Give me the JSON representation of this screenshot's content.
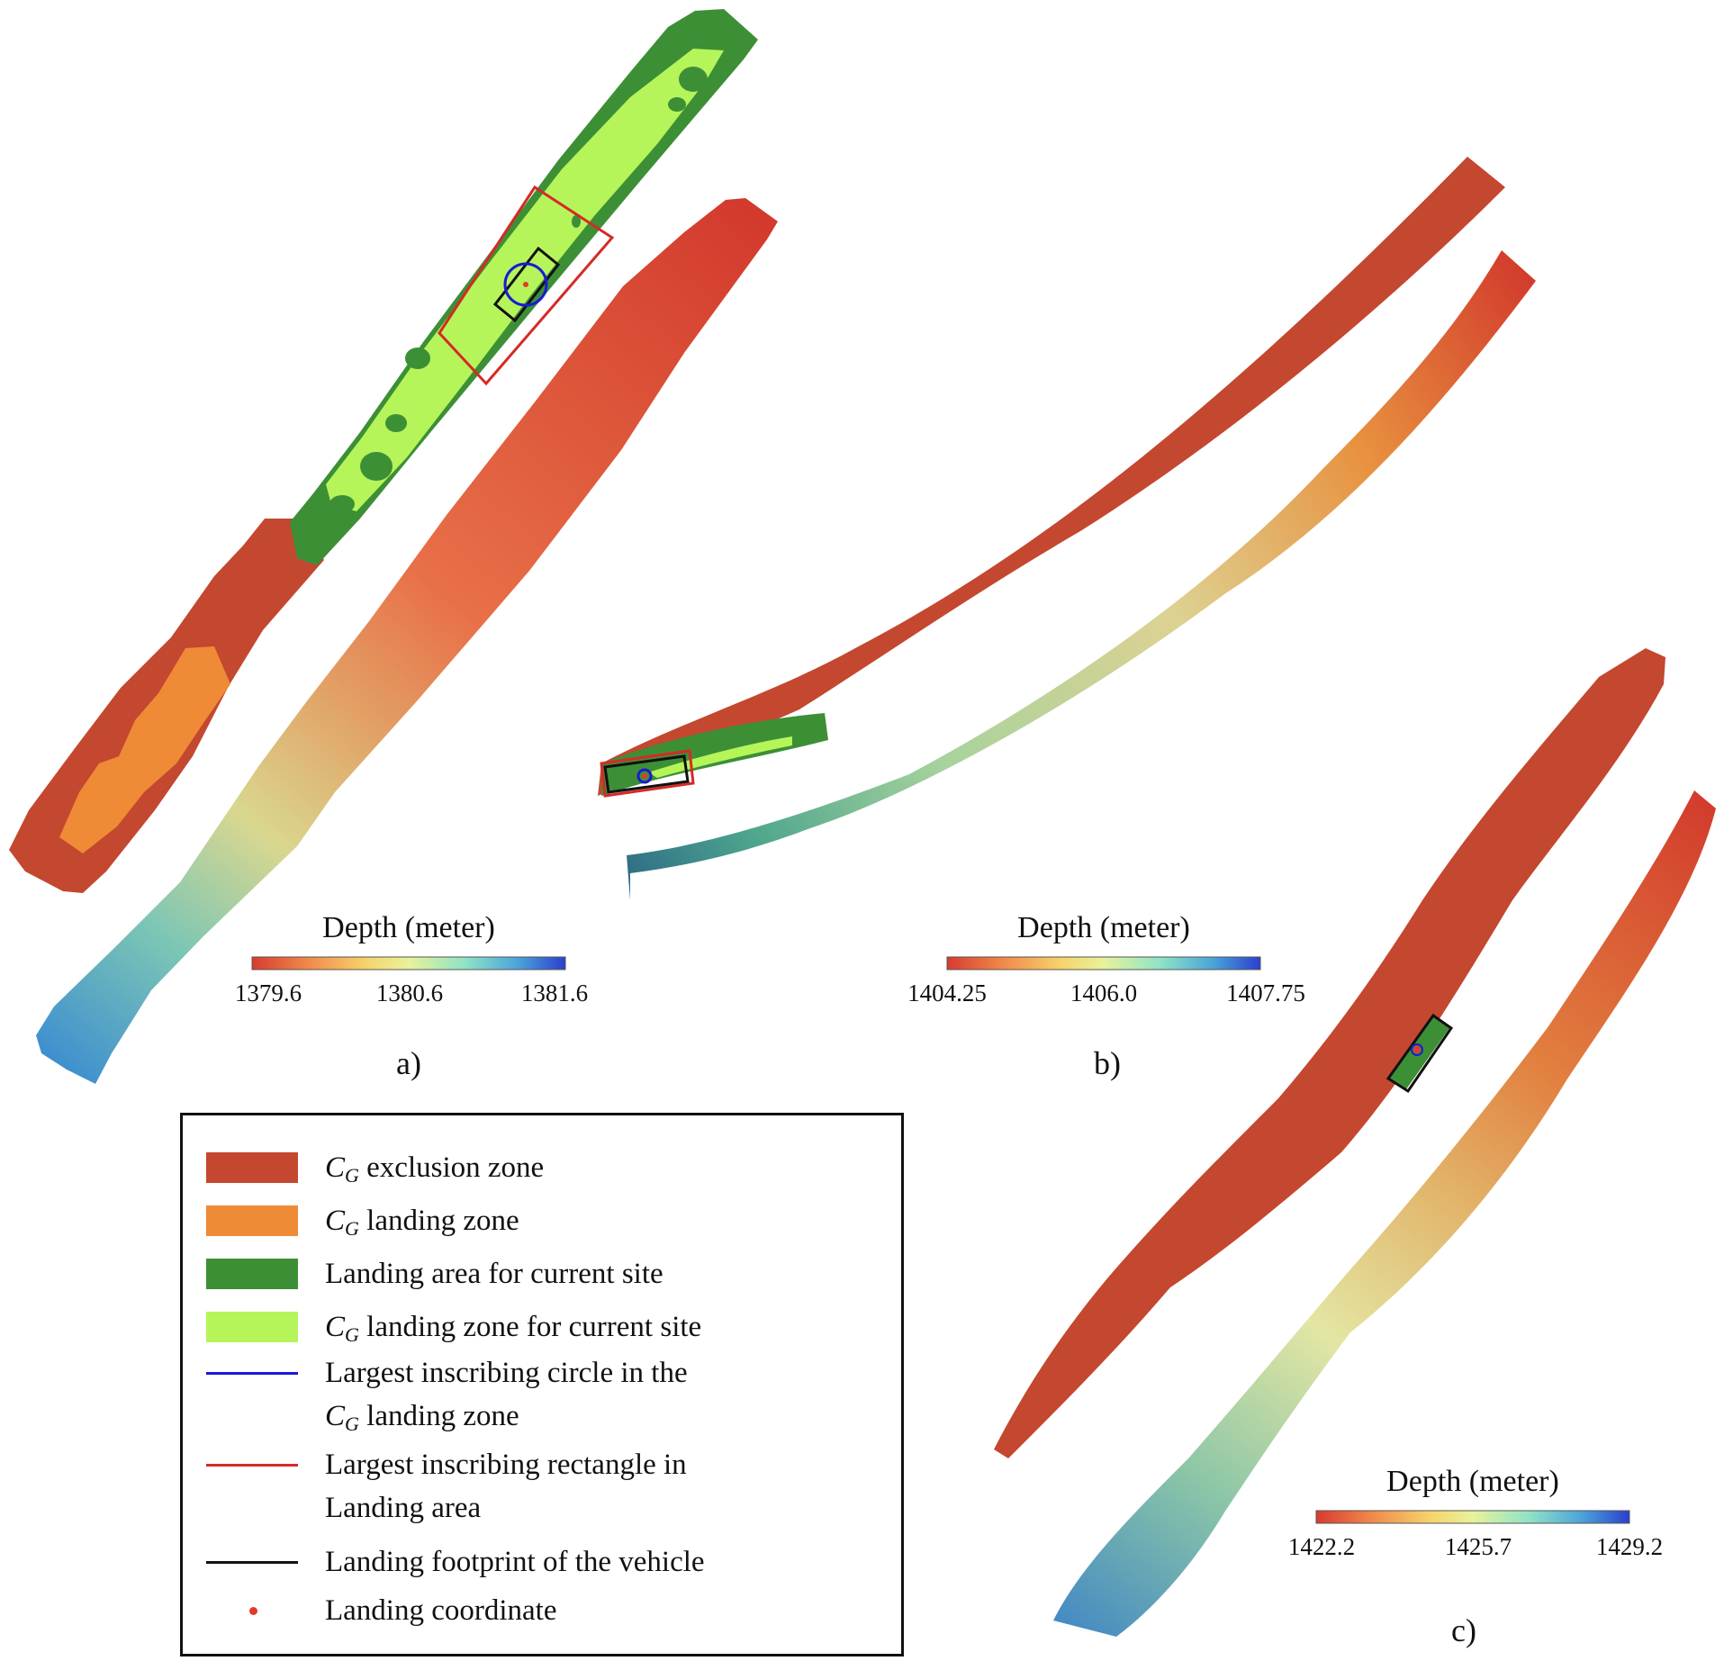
{
  "colors": {
    "exclusion": "#c4472f",
    "cg_landing": "#ef8a37",
    "landing_area": "#3d8f36",
    "cg_landing_current": "#b5f55a",
    "circle": "#1a1ad6",
    "rectangle": "#d52a26",
    "footprint": "#111111",
    "coordinate": "#e23a2a",
    "depth_ramp": [
      "#d73b2f",
      "#f08a4b",
      "#f6d26b",
      "#e8f29b",
      "#8fe3c6",
      "#4aa3d8",
      "#2b3fcf"
    ]
  },
  "panels": [
    {
      "label": "a)",
      "colorbar": {
        "title": "Depth (meter)",
        "ticks": [
          "1379.6",
          "1380.6",
          "1381.6"
        ]
      }
    },
    {
      "label": "b)",
      "colorbar": {
        "title": "Depth (meter)",
        "ticks": [
          "1404.25",
          "1406.0",
          "1407.75"
        ]
      }
    },
    {
      "label": "c)",
      "colorbar": {
        "title": "Depth (meter)",
        "ticks": [
          "1422.2",
          "1425.7",
          "1429.2"
        ]
      }
    }
  ],
  "legend": {
    "items": [
      {
        "pre": "C",
        "sub": "G",
        "text": " exclusion zone",
        "symbol": "swatch",
        "color": "#c4472f"
      },
      {
        "pre": "C",
        "sub": "G",
        "text": " landing  zone",
        "symbol": "swatch",
        "color": "#ef8a37"
      },
      {
        "pre": "",
        "sub": "",
        "text": "Landing area for current site",
        "symbol": "swatch",
        "color": "#3d8f36"
      },
      {
        "pre": "C",
        "sub": "G",
        "text": " landing zone for current site",
        "symbol": "swatch",
        "color": "#b5f55a"
      },
      {
        "pre": "",
        "sub": "",
        "text": "Largest inscribing circle in the",
        "text2_pre": "C",
        "text2_sub": "G",
        "text2": " landing zone",
        "symbol": "line",
        "color": "#1a1ad6"
      },
      {
        "pre": "",
        "sub": "",
        "text": "Largest inscribing rectangle in",
        "text2_pre": "",
        "text2_sub": "",
        "text2": "Landing area",
        "symbol": "line",
        "color": "#d52a26"
      },
      {
        "pre": "",
        "sub": "",
        "text": "Landing footprint of the vehicle",
        "symbol": "line",
        "color": "#111111"
      },
      {
        "pre": "",
        "sub": "",
        "text": "Landing coordinate",
        "symbol": "dot",
        "color": "#e23a2a"
      }
    ]
  }
}
